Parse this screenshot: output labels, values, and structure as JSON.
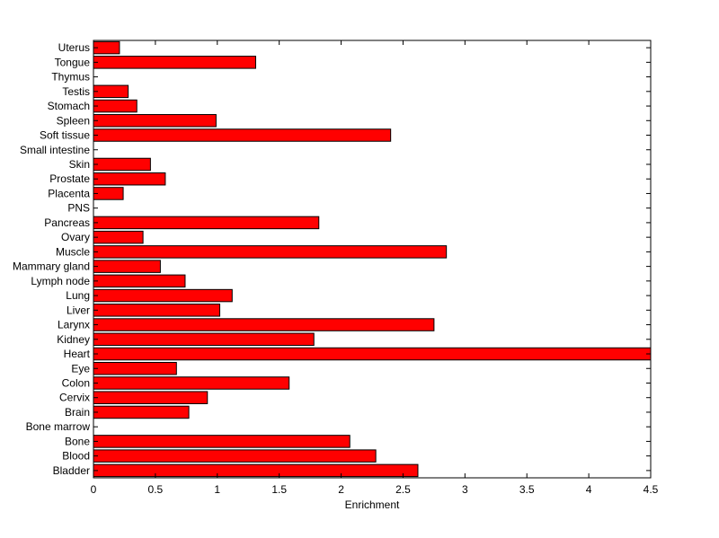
{
  "chart_data": {
    "type": "bar",
    "orientation": "horizontal",
    "title": "",
    "xlabel": "Enrichment",
    "ylabel": "",
    "xlim": [
      0,
      4.5
    ],
    "xticks": [
      "0",
      "0.5",
      "1",
      "1.5",
      "2",
      "2.5",
      "3",
      "3.5",
      "4",
      "4.5"
    ],
    "grid": false,
    "legend": "none",
    "bar_color": "#ff0000",
    "categories": [
      "Bladder",
      "Blood",
      "Bone",
      "Bone marrow",
      "Brain",
      "Cervix",
      "Colon",
      "Eye",
      "Heart",
      "Kidney",
      "Larynx",
      "Liver",
      "Lung",
      "Lymph node",
      "Mammary gland",
      "Muscle",
      "Ovary",
      "Pancreas",
      "PNS",
      "Placenta",
      "Prostate",
      "Skin",
      "Small intestine",
      "Soft tissue",
      "Spleen",
      "Stomach",
      "Testis",
      "Thymus",
      "Tongue",
      "Uterus"
    ],
    "values": [
      2.62,
      2.28,
      2.07,
      0,
      0.77,
      0.92,
      1.58,
      0.67,
      4.5,
      1.78,
      2.75,
      1.02,
      1.12,
      0.74,
      0.54,
      2.85,
      0.4,
      1.82,
      0,
      0.24,
      0.58,
      0.46,
      0,
      2.4,
      0.99,
      0.35,
      0.28,
      0,
      1.31,
      0.21
    ]
  }
}
